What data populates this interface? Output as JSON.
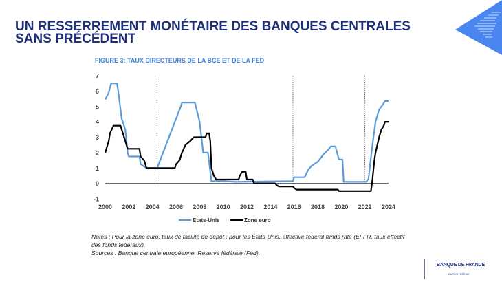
{
  "slide": {
    "title": "UN RESSERREMENT MONÉTAIRE DES BANQUES CENTRALES SANS PRÉCÉDENT",
    "notes": [
      "Notes : Pour la zone euro, taux de facilité de dépôt ; pour les États-Unis, effective federal funds rate (EFFR, taux effectif des fonds fédéraux).",
      "Sources : Banque centrale européenne, Réserve fédérale (Fed)."
    ],
    "logo": {
      "name": "BANQUE DE FRANCE",
      "sub": "EUROSYSTÈME"
    },
    "colors": {
      "title": "#1f2f7a",
      "accent": "#3b80d6"
    }
  },
  "chart_data": {
    "type": "line",
    "title": "FIGURE 3: TAUX DIRECTEURS DE LA BCE ET DE LA FED",
    "xlim": [
      2000,
      2024
    ],
    "ylim": [
      -1,
      7
    ],
    "xticks": [
      "2000",
      "2002",
      "2004",
      "2006",
      "2008",
      "2010",
      "2012",
      "2014",
      "2016",
      "2018",
      "2020",
      "2022",
      "2024"
    ],
    "yticks": [
      "-1",
      "0",
      "1",
      "2",
      "3",
      "4",
      "5",
      "6",
      "7"
    ],
    "vlines": [
      2004.4,
      2015.9,
      2022.0
    ],
    "legend": "bottom",
    "series": [
      {
        "name": "Etats-Unis",
        "color": "#5b9bdc",
        "points": [
          [
            2000,
            5.45
          ],
          [
            2000.3,
            5.9
          ],
          [
            2000.5,
            6.5
          ],
          [
            2001,
            6.5
          ],
          [
            2001.1,
            6.0
          ],
          [
            2001.4,
            4.2
          ],
          [
            2001.7,
            3.5
          ],
          [
            2001.9,
            2.0
          ],
          [
            2002,
            1.75
          ],
          [
            2002.9,
            1.75
          ],
          [
            2003,
            1.25
          ],
          [
            2003.5,
            1.0
          ],
          [
            2004.4,
            1.0
          ],
          [
            2006.4,
            5.0
          ],
          [
            2006.5,
            5.25
          ],
          [
            2007.6,
            5.25
          ],
          [
            2008,
            4.0
          ],
          [
            2008.3,
            2.0
          ],
          [
            2008.7,
            2.0
          ],
          [
            2009,
            0.15
          ],
          [
            2010,
            0.15
          ],
          [
            2011,
            0.1
          ],
          [
            2015.9,
            0.15
          ],
          [
            2016,
            0.4
          ],
          [
            2016.9,
            0.4
          ],
          [
            2017.2,
            0.9
          ],
          [
            2017.5,
            1.15
          ],
          [
            2018,
            1.4
          ],
          [
            2018.5,
            1.9
          ],
          [
            2018.9,
            2.2
          ],
          [
            2019.1,
            2.4
          ],
          [
            2019.5,
            2.4
          ],
          [
            2019.8,
            1.55
          ],
          [
            2020.1,
            1.55
          ],
          [
            2020.2,
            0.1
          ],
          [
            2022.1,
            0.1
          ],
          [
            2022.3,
            0.3
          ],
          [
            2022.6,
            2.3
          ],
          [
            2022.9,
            4.0
          ],
          [
            2023.2,
            4.8
          ],
          [
            2023.5,
            5.1
          ],
          [
            2023.7,
            5.35
          ],
          [
            2024,
            5.35
          ]
        ]
      },
      {
        "name": "Zone euro",
        "color": "#000000",
        "points": [
          [
            2000,
            2.0
          ],
          [
            2000.3,
            2.75
          ],
          [
            2000.4,
            3.25
          ],
          [
            2000.7,
            3.75
          ],
          [
            2001.3,
            3.75
          ],
          [
            2001.4,
            3.5
          ],
          [
            2001.7,
            2.75
          ],
          [
            2001.9,
            2.25
          ],
          [
            2002.9,
            2.25
          ],
          [
            2003,
            1.75
          ],
          [
            2003.3,
            1.5
          ],
          [
            2003.5,
            1.0
          ],
          [
            2005.9,
            1.0
          ],
          [
            2006,
            1.25
          ],
          [
            2006.3,
            1.5
          ],
          [
            2006.5,
            2.0
          ],
          [
            2006.8,
            2.5
          ],
          [
            2007.2,
            2.75
          ],
          [
            2007.5,
            3.0
          ],
          [
            2008.5,
            3.0
          ],
          [
            2008.6,
            3.25
          ],
          [
            2008.8,
            3.25
          ],
          [
            2008.9,
            2.75
          ],
          [
            2009,
            1.0
          ],
          [
            2009.2,
            0.5
          ],
          [
            2009.4,
            0.25
          ],
          [
            2011.3,
            0.25
          ],
          [
            2011.4,
            0.5
          ],
          [
            2011.6,
            0.75
          ],
          [
            2011.9,
            0.75
          ],
          [
            2012,
            0.25
          ],
          [
            2012.5,
            0.25
          ],
          [
            2012.6,
            0
          ],
          [
            2014.4,
            0
          ],
          [
            2014.5,
            -0.1
          ],
          [
            2014.7,
            -0.2
          ],
          [
            2015.9,
            -0.2
          ],
          [
            2016,
            -0.3
          ],
          [
            2016.2,
            -0.4
          ],
          [
            2019.7,
            -0.4
          ],
          [
            2019.8,
            -0.5
          ],
          [
            2022.5,
            -0.5
          ],
          [
            2022.6,
            0
          ],
          [
            2022.8,
            1.5
          ],
          [
            2022.9,
            2.0
          ],
          [
            2023.2,
            3.0
          ],
          [
            2023.4,
            3.5
          ],
          [
            2023.6,
            3.75
          ],
          [
            2023.7,
            4.0
          ],
          [
            2024,
            4.0
          ]
        ]
      }
    ]
  }
}
